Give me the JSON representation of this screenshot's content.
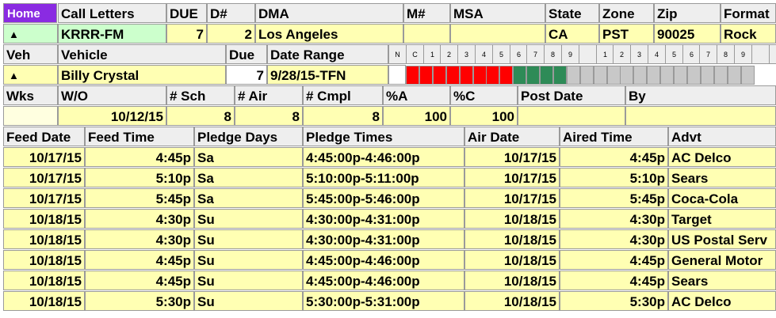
{
  "home_button": "Home",
  "station": {
    "headers": [
      "Call Letters",
      "DUE",
      "D#",
      "DMA",
      "M#",
      "MSA",
      "State",
      "Zone",
      "Zip",
      "Format"
    ],
    "call_letters": "KRRR-FM",
    "due": "7",
    "d_num": "2",
    "dma": "Los Angeles",
    "m_num": "",
    "msa": "",
    "state": "CA",
    "zone": "PST",
    "zip": "90025",
    "format": "Rock",
    "expand_icon": "triangle-up-icon"
  },
  "vehicle": {
    "headers": [
      "Veh",
      "Vehicle",
      "Due",
      "Date Range"
    ],
    "name": "Billy Crystal",
    "due": "7",
    "date_range": "9/28/15-TFN",
    "schedule_labels": [
      "N",
      "C",
      "1",
      "2",
      "3",
      "4",
      "5",
      "6",
      "7",
      "8",
      "9",
      "",
      "1",
      "2",
      "3",
      "4",
      "5",
      "6",
      "7",
      "8",
      "9",
      "",
      "1"
    ],
    "status_boxes": [
      "red",
      "red",
      "red",
      "red",
      "red",
      "red",
      "red",
      "red",
      "green",
      "green",
      "green",
      "green",
      "gray",
      "gray",
      "gray",
      "gray",
      "gray",
      "gray",
      "gray",
      "gray",
      "gray",
      "gray",
      "gray",
      "gray",
      "gray",
      "gray"
    ],
    "colors": {
      "red": "#ff0000",
      "green": "#2e8b57",
      "gray": "#c8c8c8"
    }
  },
  "weeks": {
    "headers": [
      "Wks",
      "W/O",
      "# Sch",
      "# Air",
      "# Cmpl",
      "%A",
      "%C",
      "Post Date",
      "By"
    ],
    "wo": "10/12/15",
    "sch": "8",
    "air": "8",
    "cmpl": "8",
    "pct_a": "100",
    "pct_c": "100",
    "post_date": "",
    "by": ""
  },
  "spots": {
    "headers": [
      "Feed Date",
      "Feed Time",
      "Pledge Days",
      "Pledge Times",
      "Air Date",
      "Aired Time",
      "Advt"
    ],
    "rows": [
      {
        "feed_date": "10/17/15",
        "feed_time": "4:45p",
        "pledge_days": "Sa",
        "pledge_times": "4:45:00p-4:46:00p",
        "air_date": "10/17/15",
        "aired_time": "4:45p",
        "advt": "AC Delco"
      },
      {
        "feed_date": "10/17/15",
        "feed_time": "5:10p",
        "pledge_days": "Sa",
        "pledge_times": "5:10:00p-5:11:00p",
        "air_date": "10/17/15",
        "aired_time": "5:10p",
        "advt": "Sears"
      },
      {
        "feed_date": "10/17/15",
        "feed_time": "5:45p",
        "pledge_days": "Sa",
        "pledge_times": "5:45:00p-5:46:00p",
        "air_date": "10/17/15",
        "aired_time": "5:45p",
        "advt": "Coca-Cola"
      },
      {
        "feed_date": "10/18/15",
        "feed_time": "4:30p",
        "pledge_days": "Su",
        "pledge_times": "4:30:00p-4:31:00p",
        "air_date": "10/18/15",
        "aired_time": "4:30p",
        "advt": "Target"
      },
      {
        "feed_date": "10/18/15",
        "feed_time": "4:30p",
        "pledge_days": "Su",
        "pledge_times": "4:30:00p-4:31:00p",
        "air_date": "10/18/15",
        "aired_time": "4:30p",
        "advt": "US Postal Serv"
      },
      {
        "feed_date": "10/18/15",
        "feed_time": "4:45p",
        "pledge_days": "Su",
        "pledge_times": "4:45:00p-4:46:00p",
        "air_date": "10/18/15",
        "aired_time": "4:45p",
        "advt": "General Motor"
      },
      {
        "feed_date": "10/18/15",
        "feed_time": "4:45p",
        "pledge_days": "Su",
        "pledge_times": "4:45:00p-4:46:00p",
        "air_date": "10/18/15",
        "aired_time": "4:45p",
        "advt": "Sears"
      },
      {
        "feed_date": "10/18/15",
        "feed_time": "5:30p",
        "pledge_days": "Su",
        "pledge_times": "5:30:00p-5:31:00p",
        "air_date": "10/18/15",
        "aired_time": "5:30p",
        "advt": "AC Delco"
      }
    ]
  }
}
